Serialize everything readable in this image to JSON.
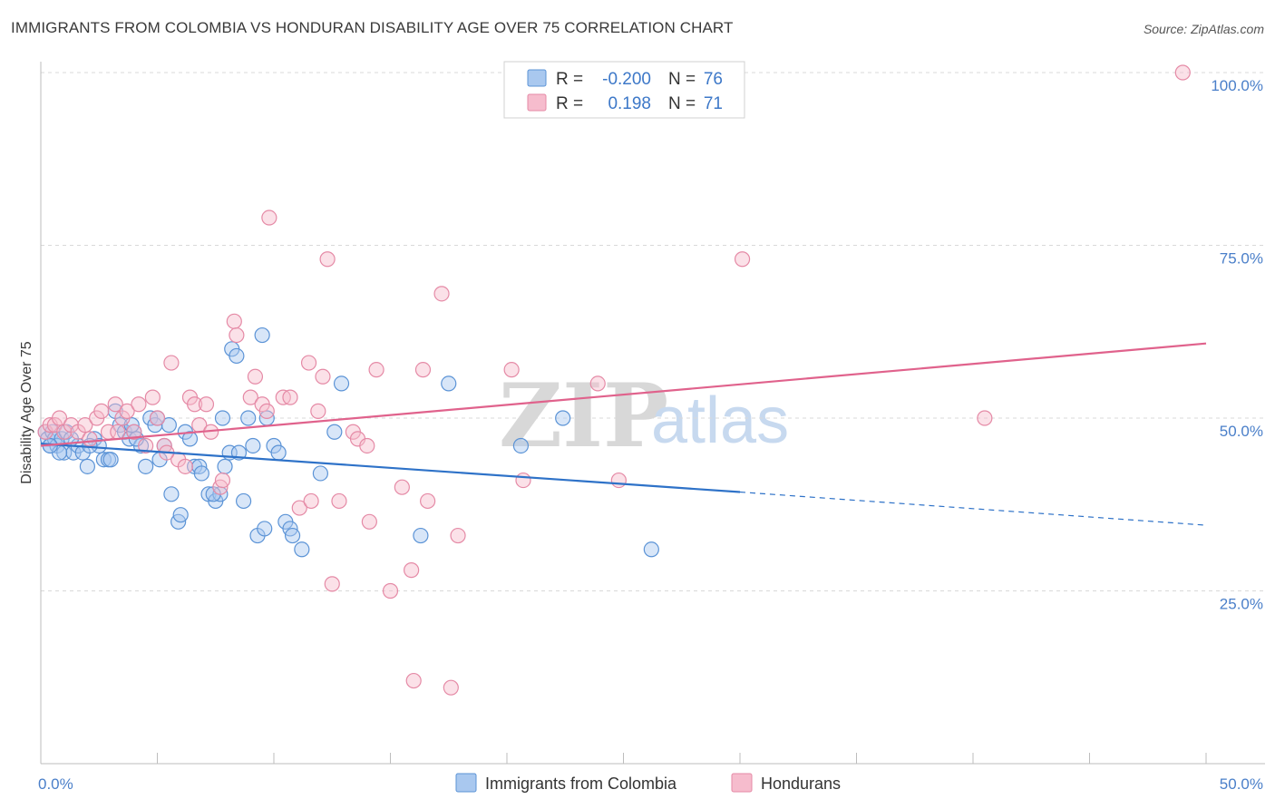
{
  "header": {
    "title": "IMMIGRANTS FROM COLOMBIA VS HONDURAN DISABILITY AGE OVER 75 CORRELATION CHART",
    "source": "Source: ZipAtlas.com"
  },
  "legend_top": {
    "rows": [
      {
        "r_label": "R =",
        "r_value": "-0.200",
        "n_label": "N =",
        "n_value": "76"
      },
      {
        "r_label": "R =",
        "r_value": "0.198",
        "n_label": "N =",
        "n_value": "71"
      }
    ]
  },
  "legend_bottom": {
    "items": [
      "Immigrants from Colombia",
      "Hondurans"
    ]
  },
  "watermark": {
    "zip": "ZIP",
    "atlas": "atlas"
  },
  "chart_data": {
    "type": "scatter",
    "ylabel": "Disability Age Over 75",
    "xlabel": "",
    "xlim": [
      0,
      50
    ],
    "ylim": [
      0,
      100
    ],
    "x_tick_labels": [
      "0.0%",
      "50.0%"
    ],
    "y_ticks": [
      25,
      50,
      75,
      100
    ],
    "y_tick_labels": [
      "25.0%",
      "50.0%",
      "75.0%",
      "100.0%"
    ],
    "grid": "horizontal dashed",
    "legend_placement": "top-center",
    "colors": {
      "colombia_fill": "#a9c8ef",
      "colombia_stroke": "#5b93d6",
      "colombia_line": "#2e72c8",
      "honduran_fill": "#f6bccd",
      "honduran_stroke": "#e58aa6",
      "honduran_line": "#e0628c",
      "tick_text": "#4a7fc9"
    },
    "series": [
      {
        "name": "Immigrants from Colombia",
        "trend": {
          "x0": 0,
          "y0": 46.3,
          "x1": 30,
          "y1": 39.3,
          "dash_to_x": 50,
          "dash_to_y": 34.5
        },
        "points": [
          [
            0.2,
            48
          ],
          [
            0.3,
            47
          ],
          [
            0.4,
            46
          ],
          [
            0.5,
            48
          ],
          [
            0.6,
            47
          ],
          [
            0.7,
            46
          ],
          [
            0.9,
            47
          ],
          [
            1.0,
            45
          ],
          [
            1.1,
            48
          ],
          [
            1.4,
            45
          ],
          [
            1.6,
            46
          ],
          [
            1.8,
            45
          ],
          [
            2.0,
            43
          ],
          [
            2.3,
            47
          ],
          [
            2.5,
            46
          ],
          [
            2.7,
            44
          ],
          [
            2.9,
            44
          ],
          [
            3.2,
            51
          ],
          [
            3.4,
            49
          ],
          [
            3.6,
            48
          ],
          [
            3.8,
            47
          ],
          [
            4.0,
            48
          ],
          [
            4.3,
            46
          ],
          [
            4.5,
            43
          ],
          [
            4.7,
            50
          ],
          [
            4.9,
            49
          ],
          [
            5.1,
            44
          ],
          [
            5.3,
            46
          ],
          [
            5.5,
            49
          ],
          [
            5.6,
            39
          ],
          [
            5.9,
            35
          ],
          [
            6.0,
            36
          ],
          [
            6.2,
            48
          ],
          [
            6.4,
            47
          ],
          [
            6.6,
            43
          ],
          [
            6.8,
            43
          ],
          [
            7.2,
            39
          ],
          [
            7.5,
            38
          ],
          [
            7.7,
            39
          ],
          [
            7.8,
            50
          ],
          [
            7.9,
            43
          ],
          [
            8.1,
            45
          ],
          [
            8.2,
            60
          ],
          [
            8.4,
            59
          ],
          [
            8.5,
            45
          ],
          [
            8.7,
            38
          ],
          [
            8.9,
            50
          ],
          [
            9.3,
            33
          ],
          [
            9.5,
            62
          ],
          [
            9.6,
            34
          ],
          [
            9.7,
            50
          ],
          [
            10.0,
            46
          ],
          [
            10.2,
            45
          ],
          [
            10.5,
            35
          ],
          [
            10.7,
            34
          ],
          [
            10.8,
            33
          ],
          [
            11.2,
            31
          ],
          [
            12.0,
            42
          ],
          [
            12.6,
            48
          ],
          [
            12.9,
            55
          ],
          [
            16.3,
            33
          ],
          [
            17.5,
            55
          ],
          [
            20.6,
            46
          ],
          [
            22.4,
            50
          ],
          [
            26.2,
            31
          ],
          [
            3.0,
            44
          ],
          [
            1.3,
            47
          ],
          [
            2.1,
            46
          ],
          [
            4.1,
            47
          ],
          [
            6.9,
            42
          ],
          [
            0.8,
            45
          ],
          [
            5.0,
            50
          ],
          [
            3.9,
            49
          ],
          [
            9.1,
            46
          ],
          [
            7.4,
            39
          ],
          [
            0.4,
            46
          ]
        ]
      },
      {
        "name": "Hondurans",
        "trend": {
          "x0": 0,
          "y0": 46.0,
          "x1": 50,
          "y1": 60.8
        },
        "points": [
          [
            0.2,
            48
          ],
          [
            0.4,
            49
          ],
          [
            0.6,
            49
          ],
          [
            0.8,
            50
          ],
          [
            1.0,
            48
          ],
          [
            1.3,
            49
          ],
          [
            1.6,
            48
          ],
          [
            1.9,
            49
          ],
          [
            2.1,
            47
          ],
          [
            2.4,
            50
          ],
          [
            2.6,
            51
          ],
          [
            2.9,
            48
          ],
          [
            3.2,
            52
          ],
          [
            3.5,
            50
          ],
          [
            3.7,
            51
          ],
          [
            4.0,
            48
          ],
          [
            4.2,
            52
          ],
          [
            4.5,
            46
          ],
          [
            4.8,
            53
          ],
          [
            5.0,
            50
          ],
          [
            5.3,
            46
          ],
          [
            5.6,
            58
          ],
          [
            5.9,
            44
          ],
          [
            6.2,
            43
          ],
          [
            6.4,
            53
          ],
          [
            6.6,
            52
          ],
          [
            6.8,
            49
          ],
          [
            7.1,
            52
          ],
          [
            7.3,
            48
          ],
          [
            7.7,
            40
          ],
          [
            7.8,
            41
          ],
          [
            8.3,
            64
          ],
          [
            8.4,
            62
          ],
          [
            9.0,
            53
          ],
          [
            9.2,
            56
          ],
          [
            9.5,
            52
          ],
          [
            9.7,
            51
          ],
          [
            9.8,
            79
          ],
          [
            10.4,
            53
          ],
          [
            10.7,
            53
          ],
          [
            11.1,
            37
          ],
          [
            11.5,
            58
          ],
          [
            11.9,
            51
          ],
          [
            12.1,
            56
          ],
          [
            12.3,
            73
          ],
          [
            12.5,
            26
          ],
          [
            12.8,
            38
          ],
          [
            13.4,
            48
          ],
          [
            13.6,
            47
          ],
          [
            14.0,
            46
          ],
          [
            14.1,
            35
          ],
          [
            14.4,
            57
          ],
          [
            15.0,
            25
          ],
          [
            15.5,
            40
          ],
          [
            15.9,
            28
          ],
          [
            16.0,
            12
          ],
          [
            16.4,
            57
          ],
          [
            16.6,
            38
          ],
          [
            17.2,
            68
          ],
          [
            17.6,
            11
          ],
          [
            17.9,
            33
          ],
          [
            20.2,
            57
          ],
          [
            20.7,
            41
          ],
          [
            23.9,
            55
          ],
          [
            24.8,
            41
          ],
          [
            30.1,
            73
          ],
          [
            40.5,
            50
          ],
          [
            49.0,
            100
          ],
          [
            3.3,
            48
          ],
          [
            5.4,
            45
          ],
          [
            11.6,
            38
          ]
        ]
      }
    ]
  }
}
